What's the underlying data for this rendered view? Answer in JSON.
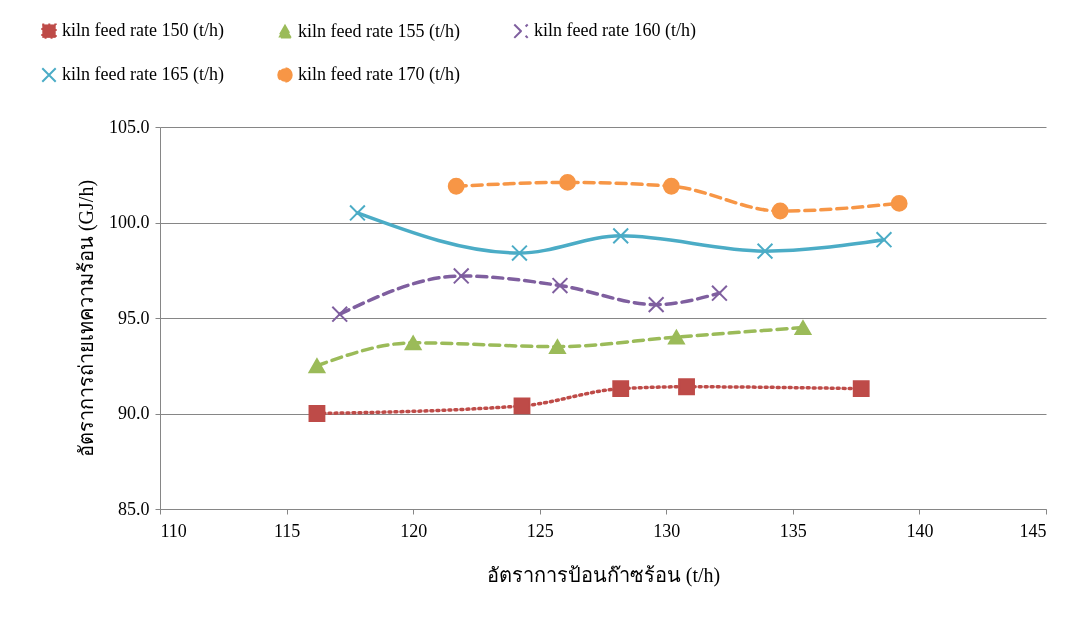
{
  "chart_data": {
    "type": "line",
    "xlabel": "อัตราการป้อนก๊าซร้อน (t/h)",
    "ylabel": "อัตราการถ่ายเทความร้อน  (GJ/h)",
    "xlim": [
      110,
      145
    ],
    "xticks": [
      110,
      115,
      120,
      125,
      130,
      135,
      140,
      145
    ],
    "ylim": [
      85,
      105
    ],
    "yticks": [
      {
        "value": 85,
        "label": "85.0"
      },
      {
        "value": 90,
        "label": "90.0"
      },
      {
        "value": 95,
        "label": "95.0"
      },
      {
        "value": 100,
        "label": "100.0"
      },
      {
        "value": 105,
        "label": "105.0"
      }
    ],
    "grid": "y",
    "legend": "top",
    "series": [
      {
        "name": "kiln feed rate 150  (t/h)",
        "color": "#be4b48",
        "marker": "square",
        "line_style": "dotted",
        "x": [
          116.2,
          124.3,
          128.2,
          130.8,
          137.7
        ],
        "values": [
          90.0,
          90.4,
          91.3,
          91.4,
          91.3
        ]
      },
      {
        "name": "kiln feed rate 155  (t/h)",
        "color": "#9bbb59",
        "marker": "triangle",
        "line_style": "dashed",
        "x": [
          116.2,
          120.0,
          125.7,
          130.4,
          135.4
        ],
        "values": [
          92.5,
          93.7,
          93.5,
          94.0,
          94.5
        ]
      },
      {
        "name": "kiln feed rate 160  (t/h)",
        "color": "#7f5f9f",
        "marker": "cross",
        "line_style": "dashed",
        "x": [
          117.1,
          121.9,
          125.8,
          129.6,
          132.1
        ],
        "values": [
          95.2,
          97.2,
          96.7,
          95.7,
          96.3
        ]
      },
      {
        "name": "kiln feed rate 165  (t/h)",
        "color": "#4bacc6",
        "marker": "cross",
        "line_style": "solid",
        "x": [
          117.8,
          124.2,
          128.2,
          133.9,
          138.6
        ],
        "values": [
          100.5,
          98.4,
          99.3,
          98.5,
          99.1
        ]
      },
      {
        "name": "kiln feed rate 170  (t/h)",
        "color": "#f79646",
        "marker": "circle",
        "line_style": "dashed",
        "x": [
          121.7,
          126.1,
          130.2,
          134.5,
          139.2
        ],
        "values": [
          101.9,
          102.1,
          101.9,
          100.6,
          101.0
        ]
      }
    ]
  }
}
